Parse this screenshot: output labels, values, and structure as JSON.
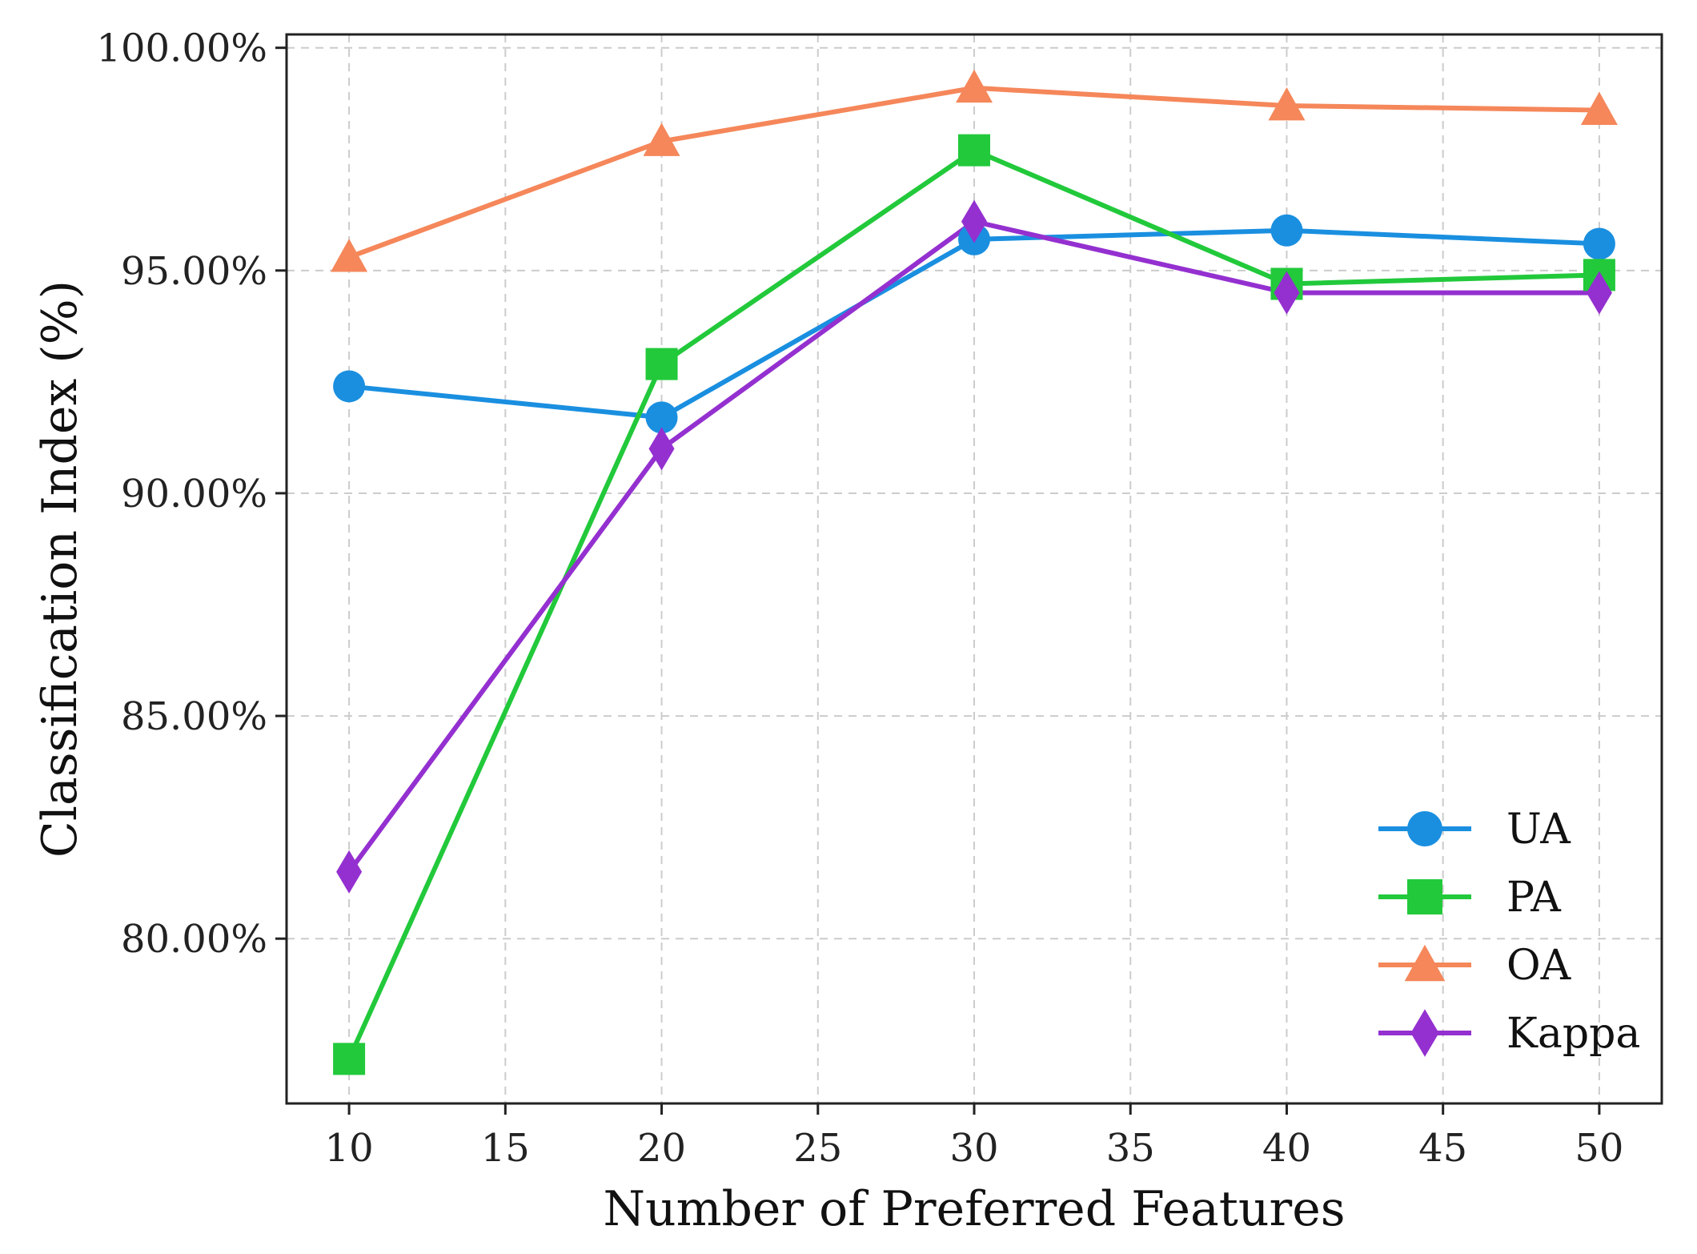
{
  "chart_data": {
    "type": "line",
    "title": "",
    "xlabel": "Number of Preferred Features",
    "ylabel": "Classification Index (%)",
    "xlim": [
      8,
      52
    ],
    "ylim": [
      76.3,
      100.3
    ],
    "xticks": [
      10,
      15,
      20,
      25,
      30,
      35,
      40,
      45,
      50
    ],
    "yticks": [
      80,
      85,
      90,
      95,
      100
    ],
    "ytick_labels": [
      "80.00%",
      "85.00%",
      "90.00%",
      "95.00%",
      "100.00%"
    ],
    "grid": true,
    "legend_position": "lower-right",
    "x": [
      10,
      20,
      30,
      40,
      50
    ],
    "series": [
      {
        "name": "UA",
        "values": [
          92.4,
          91.7,
          95.7,
          95.9,
          95.6
        ],
        "color": "#1a8fe0",
        "marker": "circle"
      },
      {
        "name": "PA",
        "values": [
          77.3,
          92.9,
          97.7,
          94.7,
          94.9
        ],
        "color": "#22c93b",
        "marker": "square"
      },
      {
        "name": "OA",
        "values": [
          95.3,
          97.9,
          99.1,
          98.7,
          98.6
        ],
        "color": "#f5875a",
        "marker": "triangle"
      },
      {
        "name": "Kappa",
        "values": [
          81.5,
          91.0,
          96.1,
          94.5,
          94.5
        ],
        "color": "#9430d0",
        "marker": "diamond"
      }
    ]
  }
}
